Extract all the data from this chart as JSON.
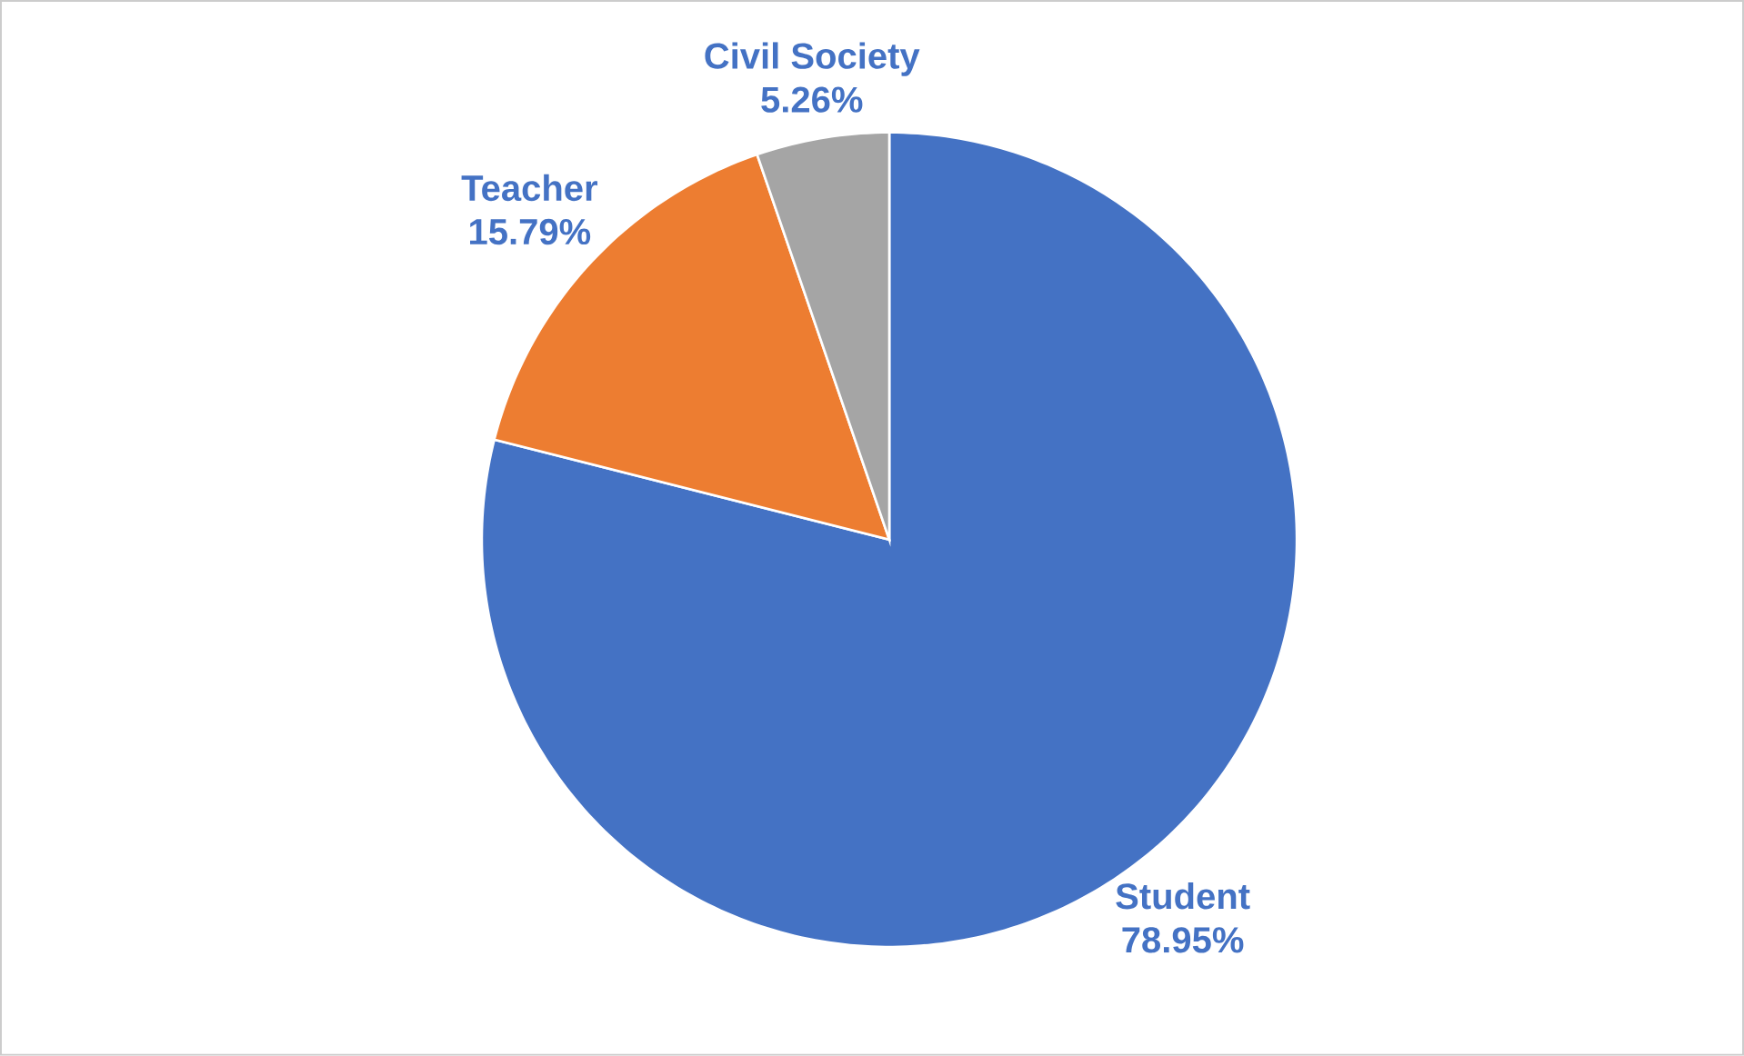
{
  "chart_data": {
    "type": "pie",
    "categories": [
      "Student",
      "Teacher",
      "Civil Society"
    ],
    "values": [
      78.95,
      15.79,
      5.26
    ],
    "value_labels": [
      "78.95%",
      "15.79%",
      "5.26%"
    ],
    "colors": [
      "#4472c4",
      "#ed7d31",
      "#a5a5a5"
    ]
  }
}
